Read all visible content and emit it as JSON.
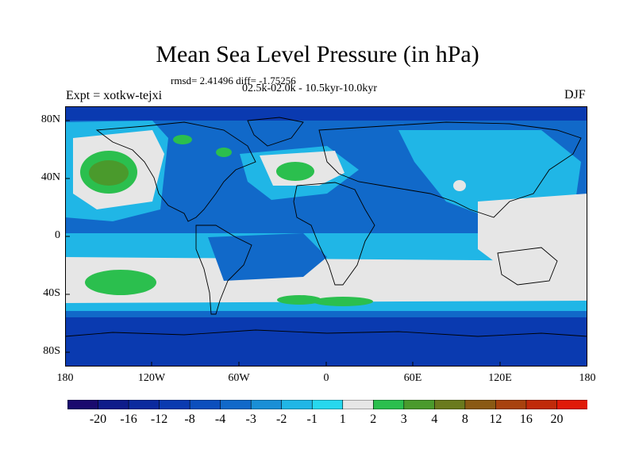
{
  "title": "Mean Sea Level Pressure (in hPa)",
  "stats": "rmsd= 2.41496 diff= -1.75256",
  "period": "02.5k-02.0k - 10.5kyr-10.0kyr",
  "experiment": "Expt = xotkw-tejxi",
  "season": "DJF",
  "map": {
    "lat_ticks": [
      "80N",
      "40N",
      "0",
      "40S",
      "80S"
    ],
    "lon_ticks": [
      "180",
      "120W",
      "60W",
      "0",
      "60E",
      "120E",
      "180"
    ]
  },
  "colorbar": {
    "labels": [
      "-20",
      "-16",
      "-12",
      "-8",
      "-4",
      "-3",
      "-2",
      "-1",
      "1",
      "2",
      "3",
      "4",
      "8",
      "12",
      "16",
      "20"
    ],
    "colors": [
      "#1a0a6e",
      "#0e1c8a",
      "#0b2a9e",
      "#0a3ab0",
      "#0c4fbd",
      "#1169c9",
      "#1a8fd6",
      "#20b6e6",
      "#27d8ee",
      "#e6e6e6",
      "#2bbf4e",
      "#4a9a2c",
      "#6a7a1e",
      "#8a5a14",
      "#a8420e",
      "#c02a0a",
      "#e01a08"
    ]
  }
}
